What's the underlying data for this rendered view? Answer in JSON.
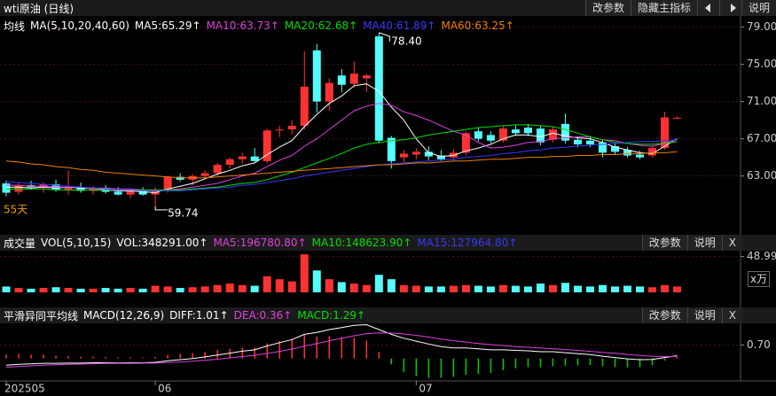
{
  "window": {
    "title": "wti原油 (日线)",
    "buttons": [
      "改参数",
      "隐藏主指标",
      "说明"
    ]
  },
  "chart_data": [
    {
      "type": "candlestick",
      "indicator": "均线",
      "params": "MA(5,10,20,40,60)",
      "up_color": "#ff3232",
      "down_color": "#54fcfc",
      "grid": true,
      "xlim": [
        -0.5,
        59.1
      ],
      "ylim": [
        58.3,
        80.2
      ],
      "yticks": [
        {
          "value": 63,
          "label": "63.00"
        },
        {
          "value": 67,
          "label": "67.00"
        },
        {
          "value": 71,
          "label": "71.00"
        },
        {
          "value": 75,
          "label": "75.00"
        },
        {
          "value": 79,
          "label": "79.00"
        }
      ],
      "open": [
        62.2,
        61.3,
        62.0,
        61.8,
        62.1,
        61.5,
        61.8,
        61.4,
        61.7,
        61.3,
        61.0,
        61.4,
        61.0,
        61.5,
        62.9,
        62.6,
        63.0,
        63.3,
        64.2,
        64.8,
        65.1,
        64.6,
        67.9,
        68.0,
        68.4,
        76.5,
        71.0,
        73.8,
        72.9,
        73.5,
        78.0,
        67.1,
        65.0,
        65.3,
        65.6,
        65.2,
        65.0,
        65.5,
        67.8,
        67.4,
        66.8,
        68.0,
        68.2,
        68.1,
        66.9,
        68.6,
        66.9,
        66.8,
        66.6,
        66.2,
        65.8,
        65.3,
        65.2,
        66.0,
        69.2
      ],
      "high": [
        62.5,
        62.3,
        62.5,
        62.3,
        62.6,
        63.6,
        62.3,
        61.9,
        62.0,
        61.8,
        61.6,
        61.8,
        61.8,
        63.0,
        63.3,
        63.2,
        63.6,
        64.4,
        65.0,
        65.5,
        66.0,
        68.1,
        68.4,
        69.0,
        76.4,
        77.2,
        73.5,
        74.5,
        75.3,
        74.0,
        78.4,
        67.3,
        65.8,
        66.0,
        66.2,
        65.8,
        65.9,
        67.8,
        68.2,
        67.8,
        68.4,
        68.5,
        68.6,
        68.4,
        68.3,
        69.7,
        67.2,
        67.3,
        66.9,
        66.5,
        66.1,
        65.7,
        66.2,
        69.9,
        69.4
      ],
      "low": [
        60.8,
        61.0,
        61.5,
        61.2,
        61.3,
        61.0,
        61.2,
        61.0,
        61.1,
        60.9,
        60.6,
        60.9,
        59.74,
        61.2,
        62.4,
        62.0,
        62.7,
        63.0,
        63.8,
        64.3,
        64.5,
        64.4,
        67.2,
        67.5,
        68.0,
        69.8,
        70.0,
        72.0,
        72.5,
        72.0,
        66.5,
        63.8,
        64.5,
        64.8,
        64.7,
        64.6,
        64.7,
        65.2,
        66.7,
        66.5,
        66.6,
        67.3,
        67.3,
        66.3,
        66.6,
        66.5,
        66.1,
        66.1,
        65.0,
        65.3,
        65.0,
        64.8,
        65.0,
        65.8,
        69.1
      ],
      "close": [
        61.2,
        62.0,
        61.8,
        62.1,
        61.5,
        61.8,
        61.4,
        61.7,
        61.3,
        61.0,
        61.4,
        61.0,
        61.5,
        62.9,
        62.6,
        63.0,
        63.3,
        64.2,
        64.8,
        65.1,
        64.6,
        67.9,
        68.0,
        68.4,
        72.6,
        71.0,
        73.0,
        72.8,
        74.0,
        73.8,
        66.8,
        64.6,
        65.4,
        65.6,
        65.1,
        64.8,
        65.5,
        67.6,
        67.0,
        66.8,
        68.1,
        67.6,
        67.6,
        66.6,
        68.0,
        66.8,
        66.4,
        66.4,
        65.5,
        65.6,
        65.2,
        65.0,
        66.0,
        69.3,
        69.25
      ],
      "series": [
        {
          "name": "MA5:65.29↑",
          "color": "#ffffff",
          "values": [
            61.8,
            61.8,
            61.7,
            61.8,
            61.7,
            61.8,
            61.7,
            61.7,
            61.5,
            61.4,
            61.4,
            61.3,
            61.2,
            61.6,
            61.9,
            62.2,
            62.7,
            63.2,
            63.6,
            64.1,
            64.4,
            65.3,
            66.1,
            66.8,
            68.3,
            69.6,
            70.8,
            71.6,
            72.7,
            72.9,
            72.1,
            70.4,
            69.0,
            67.0,
            65.5,
            65.1,
            65.2,
            65.7,
            66.0,
            66.4,
            67.0,
            67.4,
            67.4,
            67.2,
            67.6,
            67.3,
            67.1,
            67.0,
            66.6,
            66.1,
            65.8,
            65.5,
            65.4,
            66.2,
            67.0
          ]
        },
        {
          "name": "MA10:63.73↑",
          "color": "#e040e0",
          "values": [
            62.0,
            62.0,
            61.9,
            61.9,
            61.8,
            61.8,
            61.8,
            61.7,
            61.7,
            61.6,
            61.6,
            61.5,
            61.5,
            61.5,
            61.6,
            61.8,
            62.0,
            62.2,
            62.6,
            63.0,
            63.3,
            64.0,
            64.7,
            65.2,
            66.2,
            67.0,
            68.0,
            69.0,
            70.0,
            70.5,
            70.8,
            70.6,
            69.9,
            69.5,
            69.0,
            68.4,
            67.8,
            67.4,
            66.6,
            66.0,
            66.1,
            66.3,
            66.6,
            66.7,
            67.0,
            67.1,
            67.2,
            67.2,
            66.9,
            66.8,
            66.5,
            66.3,
            66.2,
            66.5,
            66.9
          ]
        },
        {
          "name": "MA20:62.68↑",
          "color": "#00e000",
          "values": [
            61.6,
            61.6,
            61.6,
            61.6,
            61.5,
            61.5,
            61.5,
            61.5,
            61.5,
            61.5,
            61.5,
            61.5,
            61.5,
            61.5,
            61.5,
            61.6,
            61.7,
            61.8,
            62.0,
            62.2,
            62.3,
            62.6,
            63.0,
            63.4,
            63.9,
            64.4,
            64.9,
            65.4,
            66.0,
            66.4,
            66.6,
            66.8,
            66.9,
            67.1,
            67.4,
            67.6,
            67.8,
            68.0,
            68.2,
            68.3,
            68.4,
            68.5,
            68.5,
            68.4,
            68.3,
            68.0,
            67.6,
            67.2,
            66.9,
            66.6,
            66.5,
            66.4,
            66.4,
            66.5,
            66.7
          ]
        },
        {
          "name": "MA40:61.89↑",
          "color": "#3838ff",
          "values": [
            62.4,
            62.3,
            62.2,
            62.1,
            62.0,
            61.9,
            61.8,
            61.7,
            61.6,
            61.5,
            61.5,
            61.4,
            61.4,
            61.4,
            61.4,
            61.5,
            61.6,
            61.7,
            61.8,
            62.0,
            62.1,
            62.3,
            62.5,
            62.7,
            63.0,
            63.2,
            63.4,
            63.6,
            63.8,
            64.0,
            64.2,
            64.3,
            64.4,
            64.5,
            64.6,
            64.7,
            64.8,
            65.0,
            65.1,
            65.2,
            65.4,
            65.5,
            65.7,
            65.8,
            66.0,
            66.1,
            66.2,
            66.3,
            66.4,
            66.5,
            66.6,
            66.7,
            66.7,
            66.8,
            66.9
          ]
        },
        {
          "name": "MA60:63.25↑",
          "color": "#f08000",
          "values": [
            64.6,
            64.5,
            64.3,
            64.2,
            64.0,
            63.9,
            63.7,
            63.6,
            63.4,
            63.3,
            63.2,
            63.1,
            63.0,
            62.9,
            62.8,
            62.8,
            62.8,
            62.9,
            63.0,
            63.1,
            63.2,
            63.3,
            63.4,
            63.5,
            63.6,
            63.7,
            63.8,
            63.9,
            64.0,
            64.1,
            64.2,
            64.2,
            64.3,
            64.4,
            64.4,
            64.5,
            64.6,
            64.6,
            64.7,
            64.8,
            64.8,
            64.9,
            65.0,
            65.0,
            65.1,
            65.1,
            65.2,
            65.2,
            65.3,
            65.3,
            65.4,
            65.4,
            65.5,
            65.5,
            65.6
          ]
        }
      ],
      "annotations": [
        {
          "label": "78.40",
          "x": 30,
          "value": 78.4
        },
        {
          "label": "59.74",
          "x": 12,
          "value": 59.74
        }
      ],
      "period_label": "55天",
      "period_color": "#e8a000"
    },
    {
      "type": "bar",
      "indicator": "成交量",
      "params": "VOL(5,10,15)",
      "unit_label": "x万",
      "buttons": [
        "改参数",
        "说明",
        "X"
      ],
      "grid": true,
      "legend": [
        {
          "label": "VOL:348291.00↑",
          "color": "#ffffff"
        },
        {
          "label": "MA5:196780.80↑",
          "color": "#e040e0"
        },
        {
          "label": "MA10:148623.90↑",
          "color": "#00e000"
        },
        {
          "label": "MA15:127964.80↑",
          "color": "#3838ff"
        }
      ],
      "xlim": [
        -0.5,
        59.1
      ],
      "ylim": [
        0,
        57
      ],
      "yticks": [
        48.99
      ],
      "values": [
        8,
        6,
        5,
        6,
        7,
        6,
        5,
        5,
        6,
        5,
        6,
        5,
        9,
        8,
        6,
        7,
        8,
        10,
        12,
        10,
        9,
        22,
        18,
        15,
        52,
        30,
        18,
        14,
        12,
        10,
        24,
        18,
        10,
        9,
        8,
        8,
        9,
        10,
        9,
        8,
        10,
        9,
        8,
        12,
        10,
        13,
        9,
        8,
        10,
        8,
        9,
        8,
        7,
        10,
        8
      ]
    },
    {
      "type": "macd",
      "indicator": "平滑异同平均线",
      "params": "MACD(12,26,9)",
      "buttons": [
        "改参数",
        "说明",
        "X"
      ],
      "grid": true,
      "legend": [
        {
          "label": "DIFF:1.01↑",
          "color": "#ffffff"
        },
        {
          "label": "DEA:0.36↑",
          "color": "#e040e0"
        },
        {
          "label": "MACD:1.29↑",
          "color": "#00e000"
        }
      ],
      "up_color": "#ff3232",
      "down_color": "#00d000",
      "xlim": [
        -0.5,
        59.1
      ],
      "ylim": [
        -1.07,
        1.82
      ],
      "yticks": [
        {
          "value": 0.7,
          "label": "0.70"
        }
      ],
      "xticks": [
        {
          "value": 0,
          "label": "202505"
        },
        {
          "value": 12,
          "label": "06"
        },
        {
          "value": 33,
          "label": "07"
        }
      ],
      "series": [
        {
          "name": "DIFF",
          "color": "#ffffff",
          "values": [
            -0.35,
            -0.3,
            -0.28,
            -0.25,
            -0.25,
            -0.24,
            -0.24,
            -0.22,
            -0.22,
            -0.23,
            -0.22,
            -0.22,
            -0.2,
            -0.12,
            -0.06,
            0.0,
            0.08,
            0.18,
            0.28,
            0.38,
            0.45,
            0.65,
            0.82,
            0.98,
            1.25,
            1.35,
            1.5,
            1.6,
            1.72,
            1.75,
            1.5,
            1.25,
            1.05,
            0.9,
            0.75,
            0.62,
            0.55,
            0.55,
            0.5,
            0.45,
            0.45,
            0.42,
            0.4,
            0.35,
            0.35,
            0.3,
            0.25,
            0.2,
            0.12,
            0.05,
            -0.02,
            -0.06,
            -0.05,
            0.05,
            0.15
          ]
        },
        {
          "name": "DEA",
          "color": "#e040e0",
          "values": [
            -0.45,
            -0.42,
            -0.38,
            -0.35,
            -0.32,
            -0.3,
            -0.29,
            -0.27,
            -0.26,
            -0.26,
            -0.25,
            -0.24,
            -0.24,
            -0.21,
            -0.18,
            -0.14,
            -0.09,
            -0.04,
            0.03,
            0.1,
            0.17,
            0.26,
            0.37,
            0.49,
            0.64,
            0.78,
            0.92,
            1.05,
            1.18,
            1.29,
            1.33,
            1.32,
            1.27,
            1.2,
            1.11,
            1.01,
            0.92,
            0.85,
            0.78,
            0.72,
            0.67,
            0.62,
            0.58,
            0.54,
            0.5,
            0.46,
            0.42,
            0.37,
            0.32,
            0.27,
            0.21,
            0.16,
            0.12,
            0.1,
            0.11
          ]
        }
      ],
      "values": [
        0.2,
        0.24,
        0.2,
        0.2,
        0.14,
        0.12,
        0.1,
        0.1,
        0.08,
        0.06,
        0.06,
        0.04,
        0.08,
        0.18,
        0.24,
        0.28,
        0.34,
        0.44,
        0.5,
        0.56,
        0.56,
        0.78,
        0.9,
        0.98,
        1.22,
        1.14,
        1.16,
        1.1,
        1.08,
        0.92,
        0.34,
        -0.3,
        -0.7,
        -0.9,
        -1.0,
        -1.0,
        -0.95,
        -0.85,
        -0.8,
        -0.75,
        -0.6,
        -0.5,
        -0.45,
        -0.45,
        -0.4,
        -0.38,
        -0.36,
        -0.34,
        -0.4,
        -0.44,
        -0.46,
        -0.44,
        -0.34,
        -0.1,
        0.08
      ]
    }
  ]
}
